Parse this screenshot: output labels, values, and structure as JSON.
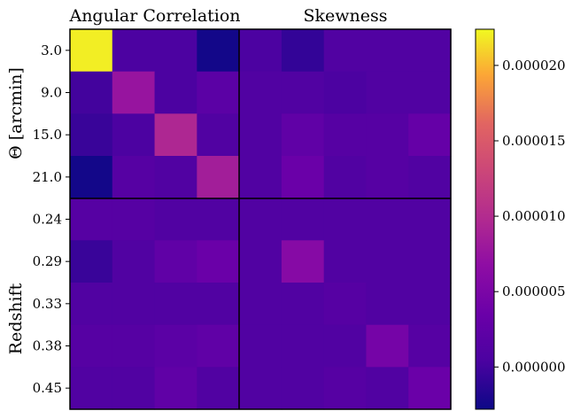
{
  "chart_data": {
    "type": "heatmap",
    "column_titles": [
      "Angular Correlation",
      "Skewness"
    ],
    "row_group_labels": [
      "Θ [arcmin]",
      "Redshift"
    ],
    "row_tick_labels": [
      "3.0",
      "9.0",
      "15.0",
      "21.0",
      "0.24",
      "0.29",
      "0.33",
      "0.38",
      "0.45"
    ],
    "colormap": "plasma",
    "color_range": [
      -2.8e-06,
      2.24e-05
    ],
    "colorbar_ticks": [
      "0.000000",
      "0.000005",
      "0.000010",
      "0.000015",
      "0.000020"
    ],
    "colorbar_tick_values": [
      0.0,
      5e-06,
      1e-05,
      1.5e-05,
      2e-05
    ],
    "values": [
      [
        2.2e-05,
        5e-07,
        5e-07,
        -2.5e-06,
        5e-07,
        -8e-07,
        1e-06,
        1e-06,
        1e-06
      ],
      [
        0.0,
        7.5e-06,
        5e-07,
        2e-06,
        1e-06,
        1e-06,
        5e-07,
        1e-06,
        1e-06
      ],
      [
        -5e-07,
        5e-07,
        9.5e-06,
        1e-06,
        1e-06,
        2.5e-06,
        1.5e-06,
        1.5e-06,
        3e-06
      ],
      [
        -2.5e-06,
        1.5e-06,
        1e-06,
        8.5e-06,
        1e-06,
        3.5e-06,
        1e-06,
        1.5e-06,
        1e-06
      ],
      [
        1.5e-06,
        1.5e-06,
        1e-06,
        1e-06,
        1e-06,
        1e-06,
        1e-06,
        1e-06,
        1e-06
      ],
      [
        -5e-07,
        1e-06,
        2.5e-06,
        3.5e-06,
        1e-06,
        6e-06,
        1e-06,
        1e-06,
        1e-06
      ],
      [
        1e-06,
        1e-06,
        1e-06,
        1e-06,
        1e-06,
        1e-06,
        1.5e-06,
        1e-06,
        1e-06
      ],
      [
        1.5e-06,
        1.5e-06,
        2e-06,
        2.5e-06,
        1e-06,
        1e-06,
        1e-06,
        4.5e-06,
        1.5e-06
      ],
      [
        1e-06,
        1e-06,
        2.5e-06,
        1e-06,
        1e-06,
        1e-06,
        1.5e-06,
        1e-06,
        3.5e-06
      ]
    ]
  }
}
